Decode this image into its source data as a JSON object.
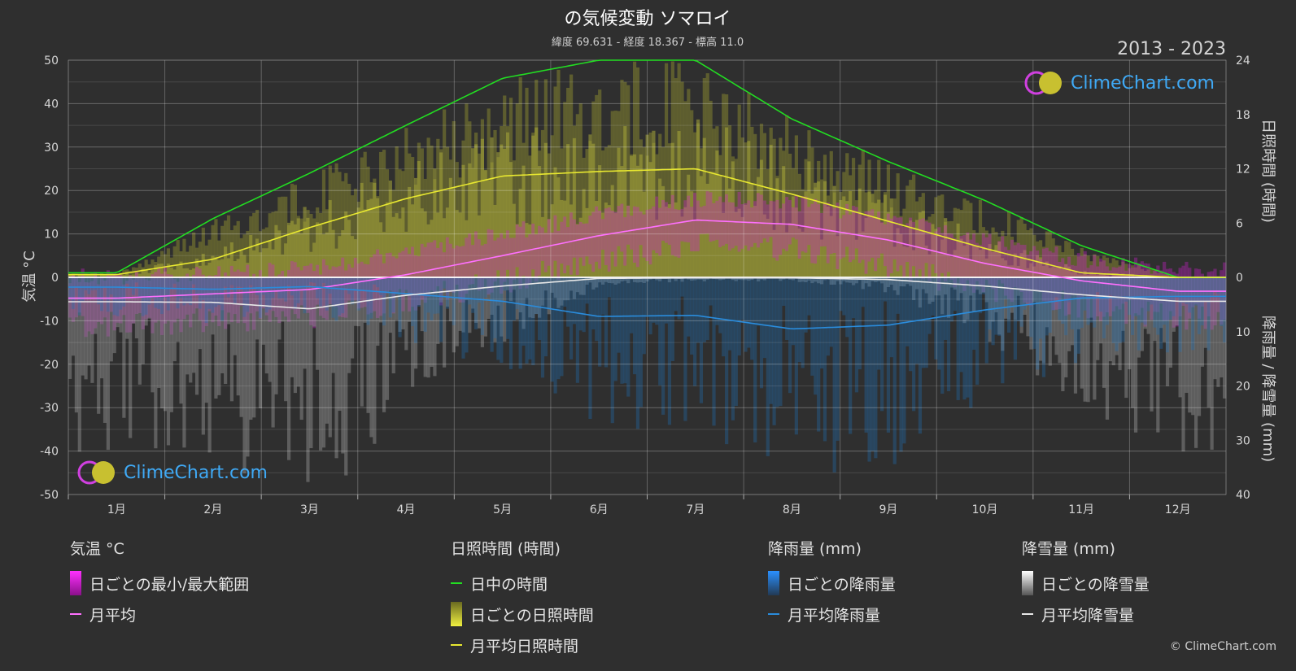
{
  "chart_data": {
    "type": "area",
    "title": "の気候変動 ソマロイ",
    "subtitle": "緯度 69.631 - 経度 18.367 - 標高 11.0",
    "year_range": "2013 - 2023",
    "categories": [
      "1月",
      "2月",
      "3月",
      "4月",
      "5月",
      "6月",
      "7月",
      "8月",
      "9月",
      "10月",
      "11月",
      "12月"
    ],
    "y_left": {
      "label": "気温 °C",
      "ylim": [
        -50,
        50
      ],
      "ticks": [
        "50",
        "40",
        "30",
        "20",
        "10",
        "0",
        "-10",
        "-20",
        "-30",
        "-40",
        "-50"
      ]
    },
    "y_right_top": {
      "label": "日照時間 (時間)",
      "range": [
        0,
        24
      ],
      "ticks": [
        "24",
        "18",
        "12",
        "6",
        "0"
      ]
    },
    "y_right_bottom": {
      "label": "降雨量 / 降雪量 (mm)",
      "range": [
        0,
        40
      ],
      "ticks": [
        "10",
        "20",
        "30",
        "40"
      ]
    },
    "series": [
      {
        "name": "日中の時間",
        "unit": "hours",
        "color": "#22dd22",
        "values": [
          0.5,
          6.5,
          11.5,
          16.8,
          22.0,
          24,
          24,
          17.5,
          12.8,
          8.5,
          3.5,
          0
        ]
      },
      {
        "name": "月平均日照時間",
        "unit": "hours",
        "color": "#e8e830",
        "values": [
          0.3,
          2.0,
          5.5,
          8.7,
          11.2,
          11.7,
          12.0,
          9.2,
          6.2,
          3.2,
          0.5,
          0
        ]
      },
      {
        "name": "月平均",
        "unit": "°C",
        "color": "#ff70ff",
        "values": [
          -4.8,
          -3.8,
          -2.8,
          0.6,
          5.0,
          9.6,
          13.2,
          12.2,
          8.6,
          3.2,
          -0.8,
          -3.2
        ]
      },
      {
        "name": "月平均降雨量",
        "unit": "mm",
        "color": "#2a8cdc",
        "values": [
          1.8,
          2.2,
          1.7,
          3.0,
          4.4,
          7.2,
          7.0,
          9.5,
          8.8,
          6.0,
          3.8,
          3.5
        ]
      },
      {
        "name": "月平均降雪量",
        "unit": "mm",
        "color": "#e8e8e8",
        "values": [
          4.5,
          4.6,
          5.8,
          3.3,
          1.6,
          0.2,
          0.1,
          0.1,
          0.4,
          1.6,
          3.2,
          4.4
        ]
      }
    ],
    "grid": true
  },
  "legend": {
    "temp": {
      "header": "気温 °C",
      "items": [
        "日ごとの最小/最大範囲",
        "月平均"
      ]
    },
    "sun": {
      "header": "日照時間 (時間)",
      "items": [
        "日中の時間",
        "日ごとの日照時間",
        "月平均日照時間"
      ]
    },
    "rain": {
      "header": "降雨量 (mm)",
      "items": [
        "日ごとの降雨量",
        "月平均降雨量"
      ]
    },
    "snow": {
      "header": "降雪量 (mm)",
      "items": [
        "日ごとの降雪量",
        "月平均降雪量"
      ]
    }
  },
  "logo_text": "ClimeChart.com",
  "copyright": "© ClimeChart.com",
  "colors": {
    "background": "#2f2f2f",
    "temp_range": "#d020d0",
    "sunshine_daily": "#8a8a30",
    "rain_daily": "#1f6fb5",
    "snow_daily": "#9a9a9a"
  }
}
